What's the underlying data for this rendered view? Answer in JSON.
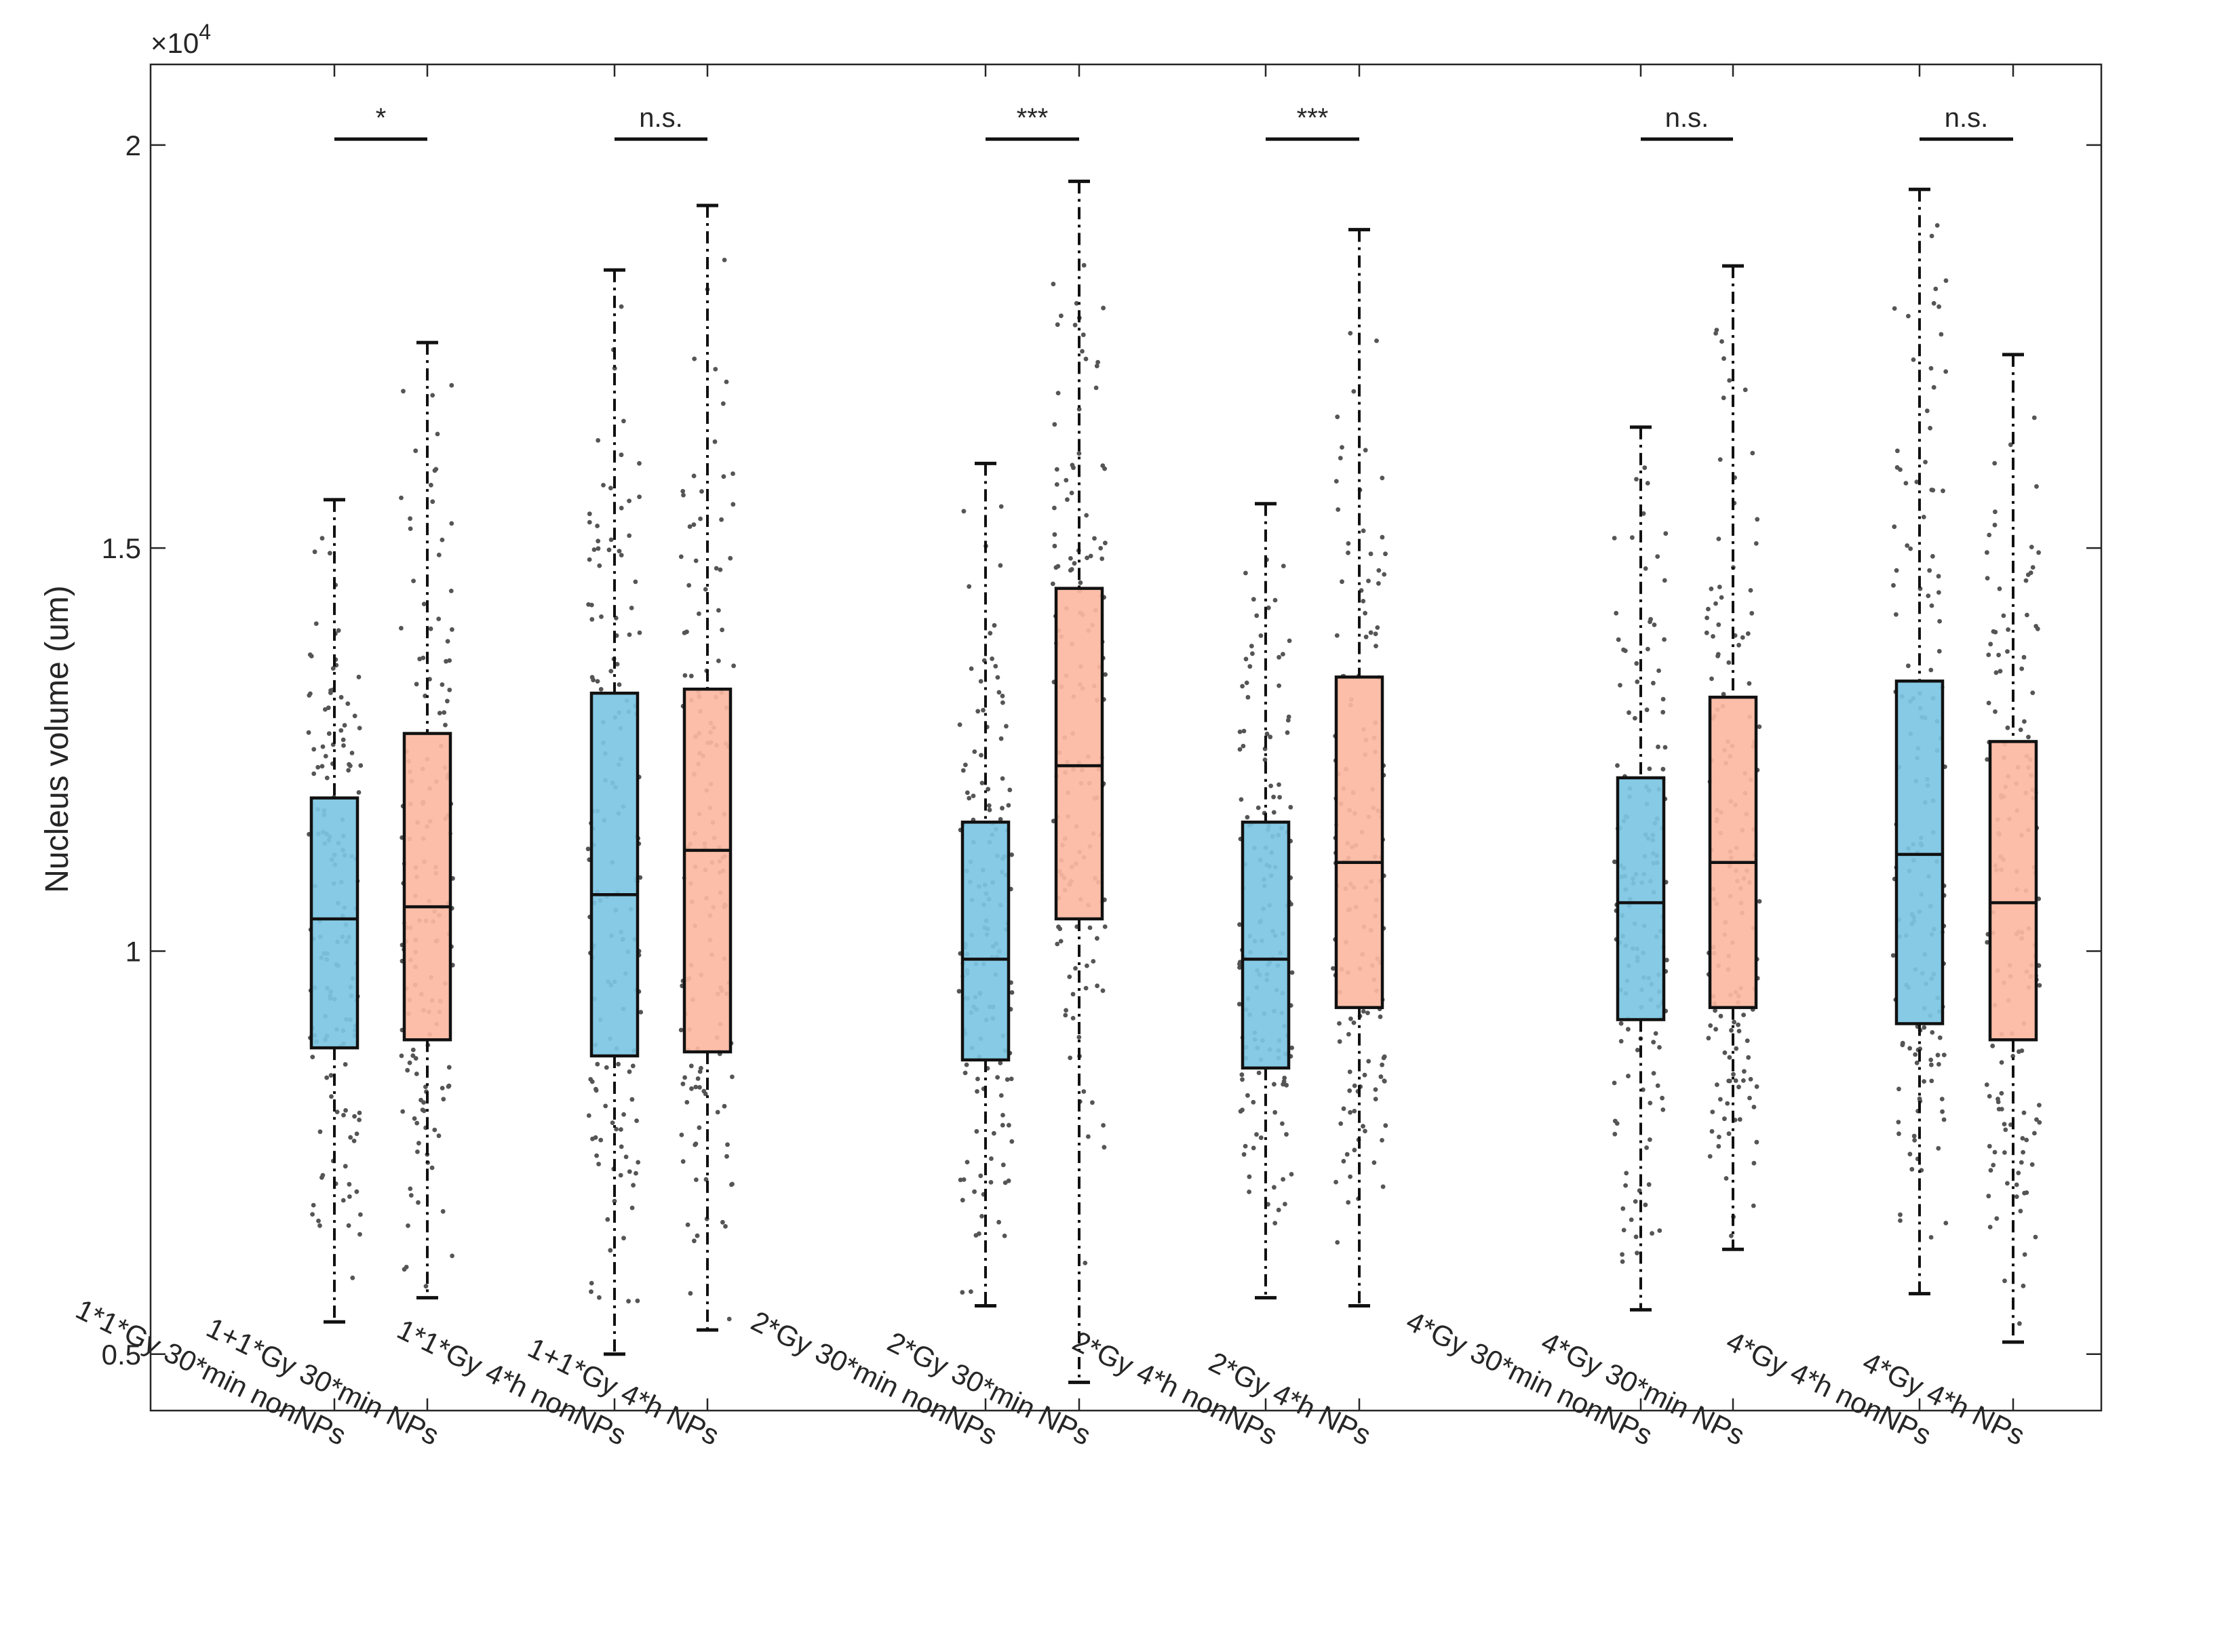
{
  "chart_data": {
    "type": "boxplot",
    "title": "",
    "ylabel": "Nucleus volume (um)",
    "xlabel": "",
    "y_exponent_label": "×10",
    "y_exponent_power": "4",
    "ylim": [
      0.43,
      2.1
    ],
    "yticks": [
      0.5,
      1,
      1.5,
      2
    ],
    "ytick_labels": [
      "0.5",
      "1",
      "1.5",
      "2"
    ],
    "grid": false,
    "colors": {
      "nonNPs": "#7cc5e3",
      "NPs": "#fcb9a1",
      "points": "#555555",
      "box_edge": "#111111"
    },
    "groups": [
      {
        "label": "1*1*Gy 30*min nonNPs",
        "color_key": "nonNPs",
        "whisker_low": 0.54,
        "q1": 0.88,
        "median": 1.04,
        "q3": 1.19,
        "whisker_high": 1.56
      },
      {
        "label": "1+1*Gy 30*min NPs",
        "color_key": "NPs",
        "whisker_low": 0.57,
        "q1": 0.89,
        "median": 1.055,
        "q3": 1.27,
        "whisker_high": 1.755
      },
      {
        "label": "1*1*Gy 4*h nonNPs",
        "color_key": "nonNPs",
        "whisker_low": 0.5,
        "q1": 0.87,
        "median": 1.07,
        "q3": 1.32,
        "whisker_high": 1.845
      },
      {
        "label": "1+1*Gy 4*h NPs",
        "color_key": "NPs",
        "whisker_low": 0.53,
        "q1": 0.875,
        "median": 1.125,
        "q3": 1.325,
        "whisker_high": 1.925
      },
      {
        "label": "2*Gy 30*min nonNPs",
        "color_key": "nonNPs",
        "whisker_low": 0.56,
        "q1": 0.865,
        "median": 0.99,
        "q3": 1.16,
        "whisker_high": 1.605
      },
      {
        "label": "2*Gy 30*min NPs",
        "color_key": "NPs",
        "whisker_low": 0.465,
        "q1": 1.04,
        "median": 1.23,
        "q3": 1.45,
        "whisker_high": 1.955
      },
      {
        "label": "2*Gy 4*h nonNPs",
        "color_key": "nonNPs",
        "whisker_low": 0.57,
        "q1": 0.855,
        "median": 0.99,
        "q3": 1.16,
        "whisker_high": 1.555
      },
      {
        "label": "2*Gy 4*h NPs",
        "color_key": "NPs",
        "whisker_low": 0.56,
        "q1": 0.93,
        "median": 1.11,
        "q3": 1.34,
        "whisker_high": 1.895
      },
      {
        "label": "4*Gy 30*min nonNPs",
        "color_key": "nonNPs",
        "whisker_low": 0.555,
        "q1": 0.915,
        "median": 1.06,
        "q3": 1.215,
        "whisker_high": 1.65
      },
      {
        "label": "4*Gy 30*min NPs",
        "color_key": "NPs",
        "whisker_low": 0.63,
        "q1": 0.93,
        "median": 1.11,
        "q3": 1.315,
        "whisker_high": 1.85
      },
      {
        "label": "4*Gy 4*h nonNPs",
        "color_key": "nonNPs",
        "whisker_low": 0.575,
        "q1": 0.91,
        "median": 1.12,
        "q3": 1.335,
        "whisker_high": 1.945
      },
      {
        "label": "4*Gy 4*h NPs",
        "color_key": "NPs",
        "whisker_low": 0.515,
        "q1": 0.89,
        "median": 1.06,
        "q3": 1.26,
        "whisker_high": 1.74
      }
    ],
    "significance": [
      {
        "pair": [
          0,
          1
        ],
        "label": "*"
      },
      {
        "pair": [
          2,
          3
        ],
        "label": "n.s."
      },
      {
        "pair": [
          4,
          5
        ],
        "label": "***"
      },
      {
        "pair": [
          6,
          7
        ],
        "label": "***"
      },
      {
        "pair": [
          8,
          9
        ],
        "label": "n.s."
      },
      {
        "pair": [
          10,
          11
        ],
        "label": "n.s."
      }
    ]
  }
}
